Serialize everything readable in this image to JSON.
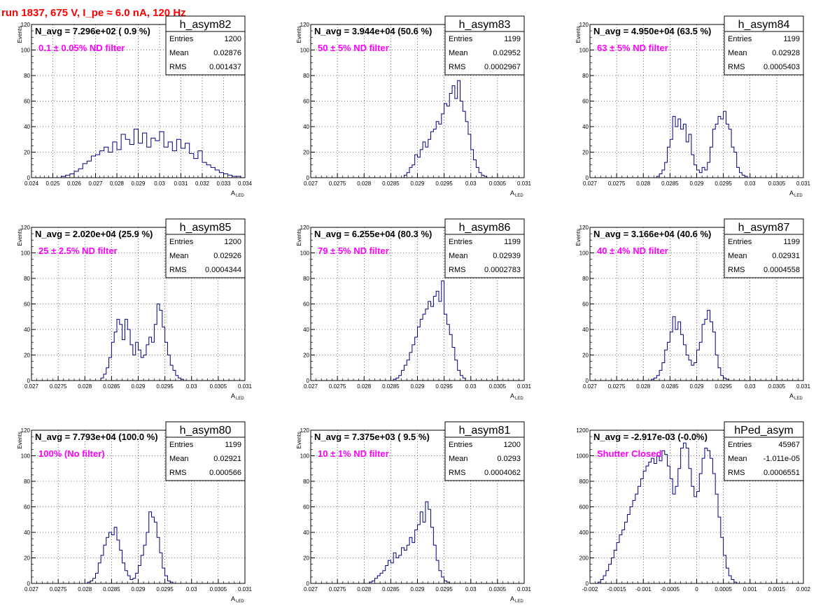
{
  "page_title": "run 1837,   675 V, I_pe ≈ 6.0 nA, 120 Hz",
  "chart_data": [
    {
      "type": "histogram",
      "name": "h_asym82",
      "nav_text": "N_avg = 7.296e+02 ( 0.9 %)",
      "filter_text": "0.1 ± 0.05% ND filter",
      "stats": {
        "entries_label": "Entries",
        "entries": "1200",
        "mean_label": "Mean",
        "mean": "0.02876",
        "rms_label": "RMS",
        "rms": "0.001437"
      },
      "xlim": [
        0.024,
        0.034
      ],
      "ylim": [
        0,
        120
      ],
      "xticks": [
        0.024,
        0.025,
        0.026,
        0.027,
        0.028,
        0.029,
        0.03,
        0.031,
        0.032,
        0.033,
        0.034
      ],
      "xtick_labels": [
        "0.024",
        "0.025",
        "0.026",
        "0.027",
        "0.028",
        "0.029",
        "0.03",
        "0.031",
        "0.032",
        "0.033",
        "0.034"
      ],
      "yticks": [
        0,
        20,
        40,
        60,
        80,
        100,
        120
      ],
      "ytick_labels": [
        "0",
        "20",
        "40",
        "60",
        "80",
        "100",
        "120"
      ],
      "xlabel": "A",
      "xlabel_sub": "LED",
      "ylabel": "Events",
      "grid": true,
      "bins": {
        "start": 0.0254,
        "width": 0.0002,
        "counts": [
          1,
          2,
          3,
          5,
          7,
          11,
          13,
          17,
          18,
          21,
          24,
          20,
          28,
          22,
          34,
          30,
          26,
          38,
          27,
          35,
          24,
          31,
          29,
          36,
          24,
          28,
          21,
          30,
          23,
          27,
          19,
          15,
          21,
          12,
          10,
          8,
          6,
          4,
          3,
          2,
          1,
          1
        ]
      }
    },
    {
      "type": "histogram",
      "name": "h_asym83",
      "nav_text": "N_avg = 3.944e+04 (50.6 %)",
      "filter_text": "50 ± 5% ND filter",
      "stats": {
        "entries_label": "Entries",
        "entries": "1199",
        "mean_label": "Mean",
        "mean": "0.02952",
        "rms_label": "RMS",
        "rms": "0.0002967"
      },
      "xlim": [
        0.027,
        0.031
      ],
      "ylim": [
        0,
        120
      ],
      "xticks": [
        0.027,
        0.0275,
        0.028,
        0.0285,
        0.029,
        0.0295,
        0.03,
        0.0305,
        0.031
      ],
      "xtick_labels": [
        "0.027",
        "0.0275",
        "0.028",
        "0.0285",
        "0.029",
        "0.0295",
        "0.03",
        "0.0305",
        "0.031"
      ],
      "yticks": [
        0,
        20,
        40,
        60,
        80,
        100,
        120
      ],
      "ytick_labels": [
        "0",
        "20",
        "40",
        "60",
        "80",
        "100",
        "120"
      ],
      "xlabel": "A",
      "xlabel_sub": "LED",
      "ylabel": "Events",
      "grid": true,
      "bins": {
        "start": 0.02875,
        "width": 5e-05,
        "counts": [
          2,
          4,
          8,
          10,
          18,
          16,
          22,
          28,
          24,
          30,
          36,
          38,
          44,
          42,
          50,
          58,
          56,
          66,
          72,
          62,
          76,
          60,
          52,
          44,
          34,
          22,
          14,
          8,
          4,
          2,
          1
        ]
      }
    },
    {
      "type": "histogram",
      "name": "h_asym84",
      "nav_text": "N_avg = 4.950e+04 (63.5 %)",
      "filter_text": "63 ± 5% ND filter",
      "stats": {
        "entries_label": "Entries",
        "entries": "1199",
        "mean_label": "Mean",
        "mean": "0.02928",
        "rms_label": "RMS",
        "rms": "0.0005403"
      },
      "xlim": [
        0.027,
        0.031
      ],
      "ylim": [
        0,
        120
      ],
      "xticks": [
        0.027,
        0.0275,
        0.028,
        0.0285,
        0.029,
        0.0295,
        0.03,
        0.0305,
        0.031
      ],
      "xtick_labels": [
        "0.027",
        "0.0275",
        "0.028",
        "0.0285",
        "0.029",
        "0.0295",
        "0.03",
        "0.0305",
        "0.031"
      ],
      "yticks": [
        0,
        20,
        40,
        60,
        80,
        100,
        120
      ],
      "ytick_labels": [
        "0",
        "20",
        "40",
        "60",
        "80",
        "100",
        "120"
      ],
      "xlabel": "A",
      "xlabel_sub": "LED",
      "ylabel": "Events",
      "grid": true,
      "bins": {
        "start": 0.02825,
        "width": 5e-05,
        "counts": [
          1,
          3,
          6,
          12,
          24,
          30,
          48,
          40,
          46,
          38,
          42,
          28,
          34,
          18,
          10,
          6,
          4,
          8,
          6,
          12,
          24,
          38,
          42,
          48,
          46,
          52,
          42,
          38,
          24,
          20,
          8,
          4,
          2,
          1
        ]
      }
    },
    {
      "type": "histogram",
      "name": "h_asym85",
      "nav_text": "N_avg = 2.020e+04 (25.9 %)",
      "filter_text": "25 ± 2.5% ND filter",
      "stats": {
        "entries_label": "Entries",
        "entries": "1200",
        "mean_label": "Mean",
        "mean": "0.02926",
        "rms_label": "RMS",
        "rms": "0.0004344"
      },
      "xlim": [
        0.027,
        0.031
      ],
      "ylim": [
        0,
        120
      ],
      "xticks": [
        0.027,
        0.0275,
        0.028,
        0.0285,
        0.029,
        0.0295,
        0.03,
        0.0305,
        0.031
      ],
      "xtick_labels": [
        "0.027",
        "0.0275",
        "0.028",
        "0.0285",
        "0.029",
        "0.0295",
        "0.03",
        "0.0305",
        "0.031"
      ],
      "yticks": [
        0,
        20,
        40,
        60,
        80,
        100,
        120
      ],
      "ytick_labels": [
        "0",
        "20",
        "40",
        "60",
        "80",
        "100",
        "120"
      ],
      "xlabel": "A",
      "xlabel_sub": "LED",
      "ylabel": "Events",
      "grid": true,
      "bins": {
        "start": 0.0283,
        "width": 5e-05,
        "counts": [
          2,
          5,
          10,
          18,
          30,
          38,
          48,
          44,
          32,
          48,
          40,
          28,
          20,
          30,
          24,
          18,
          20,
          28,
          34,
          30,
          44,
          60,
          55,
          42,
          30,
          20,
          12,
          8,
          4,
          2,
          1
        ]
      }
    },
    {
      "type": "histogram",
      "name": "h_asym86",
      "nav_text": "N_avg = 6.255e+04 (80.3 %)",
      "filter_text": "79 ± 5% ND filter",
      "stats": {
        "entries_label": "Entries",
        "entries": "1199",
        "mean_label": "Mean",
        "mean": "0.02939",
        "rms_label": "RMS",
        "rms": "0.0002783"
      },
      "xlim": [
        0.027,
        0.031
      ],
      "ylim": [
        0,
        120
      ],
      "xticks": [
        0.027,
        0.0275,
        0.028,
        0.0285,
        0.029,
        0.0295,
        0.03,
        0.0305,
        0.031
      ],
      "xtick_labels": [
        "0.027",
        "0.0275",
        "0.028",
        "0.0285",
        "0.029",
        "0.0295",
        "0.03",
        "0.0305",
        "0.031"
      ],
      "yticks": [
        0,
        20,
        40,
        60,
        80,
        100,
        120
      ],
      "ytick_labels": [
        "0",
        "20",
        "40",
        "60",
        "80",
        "100",
        "120"
      ],
      "xlabel": "A",
      "xlabel_sub": "LED",
      "ylabel": "Events",
      "grid": true,
      "bins": {
        "start": 0.02855,
        "width": 5e-05,
        "counts": [
          1,
          2,
          4,
          8,
          12,
          16,
          22,
          28,
          34,
          42,
          48,
          52,
          56,
          62,
          58,
          66,
          70,
          62,
          78,
          52,
          44,
          36,
          26,
          16,
          8,
          4,
          2
        ]
      }
    },
    {
      "type": "histogram",
      "name": "h_asym87",
      "nav_text": "N_avg = 3.166e+04 (40.6 %)",
      "filter_text": "40 ± 4% ND filter",
      "stats": {
        "entries_label": "Entries",
        "entries": "1199",
        "mean_label": "Mean",
        "mean": "0.02931",
        "rms_label": "RMS",
        "rms": "0.0004558"
      },
      "xlim": [
        0.027,
        0.031
      ],
      "ylim": [
        0,
        120
      ],
      "xticks": [
        0.027,
        0.0275,
        0.028,
        0.0285,
        0.029,
        0.0295,
        0.03,
        0.0305,
        0.031
      ],
      "xtick_labels": [
        "0.027",
        "0.0275",
        "0.028",
        "0.0285",
        "0.029",
        "0.0295",
        "0.03",
        "0.0305",
        "0.031"
      ],
      "yticks": [
        0,
        20,
        40,
        60,
        80,
        100,
        120
      ],
      "ytick_labels": [
        "0",
        "20",
        "40",
        "60",
        "80",
        "100",
        "120"
      ],
      "xlabel": "A",
      "xlabel_sub": "LED",
      "ylabel": "Events",
      "grid": true,
      "bins": {
        "start": 0.02815,
        "width": 5e-05,
        "counts": [
          1,
          2,
          4,
          8,
          14,
          24,
          30,
          38,
          50,
          40,
          46,
          36,
          28,
          20,
          16,
          12,
          14,
          24,
          30,
          44,
          48,
          55,
          46,
          38,
          20,
          10,
          4,
          2,
          1
        ]
      }
    },
    {
      "type": "histogram",
      "name": "h_asym80",
      "nav_text": "N_avg = 7.793e+04 (100.0 %)",
      "filter_text": "100% (No filter)",
      "stats": {
        "entries_label": "Entries",
        "entries": "1199",
        "mean_label": "Mean",
        "mean": "0.02921",
        "rms_label": "RMS",
        "rms": "0.000566"
      },
      "xlim": [
        0.027,
        0.031
      ],
      "ylim": [
        0,
        120
      ],
      "xticks": [
        0.027,
        0.0275,
        0.028,
        0.0285,
        0.029,
        0.0295,
        0.03,
        0.0305,
        0.031
      ],
      "xtick_labels": [
        "0.027",
        "0.0275",
        "0.028",
        "0.0285",
        "0.029",
        "0.0295",
        "0.03",
        "0.0305",
        "0.031"
      ],
      "yticks": [
        0,
        20,
        40,
        60,
        80,
        100,
        120
      ],
      "ytick_labels": [
        "0",
        "20",
        "40",
        "60",
        "80",
        "100",
        "120"
      ],
      "xlabel": "A",
      "xlabel_sub": "LED",
      "ylabel": "Events",
      "grid": true,
      "bins": {
        "start": 0.02805,
        "width": 5e-05,
        "counts": [
          1,
          2,
          4,
          8,
          16,
          22,
          30,
          36,
          40,
          38,
          44,
          34,
          26,
          16,
          10,
          6,
          3,
          4,
          8,
          14,
          22,
          30,
          40,
          56,
          52,
          48,
          36,
          24,
          12,
          6,
          2,
          1
        ]
      }
    },
    {
      "type": "histogram",
      "name": "h_asym81",
      "nav_text": "N_avg = 7.375e+03 ( 9.5 %)",
      "filter_text": "10 ± 1% ND filter",
      "stats": {
        "entries_label": "Entries",
        "entries": "1200",
        "mean_label": "Mean",
        "mean": "0.0293",
        "rms_label": "RMS",
        "rms": "0.0004062"
      },
      "xlim": [
        0.027,
        0.031
      ],
      "ylim": [
        0,
        120
      ],
      "xticks": [
        0.027,
        0.0275,
        0.028,
        0.0285,
        0.029,
        0.0295,
        0.03,
        0.0305,
        0.031
      ],
      "xtick_labels": [
        "0.027",
        "0.0275",
        "0.028",
        "0.0285",
        "0.029",
        "0.0295",
        "0.03",
        "0.0305",
        "0.031"
      ],
      "yticks": [
        0,
        20,
        40,
        60,
        80,
        100,
        120
      ],
      "ytick_labels": [
        "0",
        "20",
        "40",
        "60",
        "80",
        "100",
        "120"
      ],
      "xlabel": "A",
      "xlabel_sub": "LED",
      "ylabel": "Events",
      "grid": true,
      "bins": {
        "start": 0.0281,
        "width": 5e-05,
        "counts": [
          1,
          2,
          4,
          6,
          8,
          10,
          14,
          18,
          16,
          24,
          20,
          22,
          28,
          26,
          30,
          36,
          32,
          42,
          46,
          56,
          48,
          64,
          58,
          44,
          30,
          18,
          10,
          5,
          2,
          1
        ]
      }
    },
    {
      "type": "histogram",
      "name": "hPed_asym",
      "nav_text": "N_avg = -2.917e-03 (-0.0%)",
      "filter_text": "Shutter Closed",
      "stats": {
        "entries_label": "Entries",
        "entries": "45967",
        "mean_label": "Mean",
        "mean": "-1.011e-05",
        "rms_label": "RMS",
        "rms": "0.0006551"
      },
      "xlim": [
        -0.002,
        0.002
      ],
      "ylim": [
        0,
        1200
      ],
      "xticks": [
        -0.002,
        -0.0015,
        -0.001,
        -0.0005,
        0,
        0.0005,
        0.001,
        0.0015,
        0.002
      ],
      "xtick_labels": [
        "-0.002",
        "-0.0015",
        "-0.001",
        "-0.0005",
        "0",
        "0.0005",
        "0.001",
        "0.0015",
        "0.002"
      ],
      "yticks": [
        0,
        200,
        400,
        600,
        800,
        1000,
        1200
      ],
      "ytick_labels": [
        "0",
        "200",
        "400",
        "600",
        "800",
        "1000",
        "1200"
      ],
      "xlabel": "",
      "xlabel_sub": "",
      "ylabel": "",
      "grid": true,
      "bins": {
        "start": -0.00185,
        "width": 5e-05,
        "counts": [
          10,
          30,
          60,
          100,
          150,
          200,
          260,
          320,
          380,
          420,
          480,
          540,
          600,
          650,
          700,
          760,
          820,
          880,
          920,
          950,
          980,
          940,
          1000,
          960,
          1040,
          1010,
          920,
          820,
          700,
          760,
          900,
          1060,
          1100,
          1060,
          900,
          760,
          680,
          720,
          860,
          980,
          1060,
          1040,
          980,
          860,
          700,
          520,
          360,
          220,
          120,
          60,
          30,
          10
        ]
      }
    }
  ]
}
